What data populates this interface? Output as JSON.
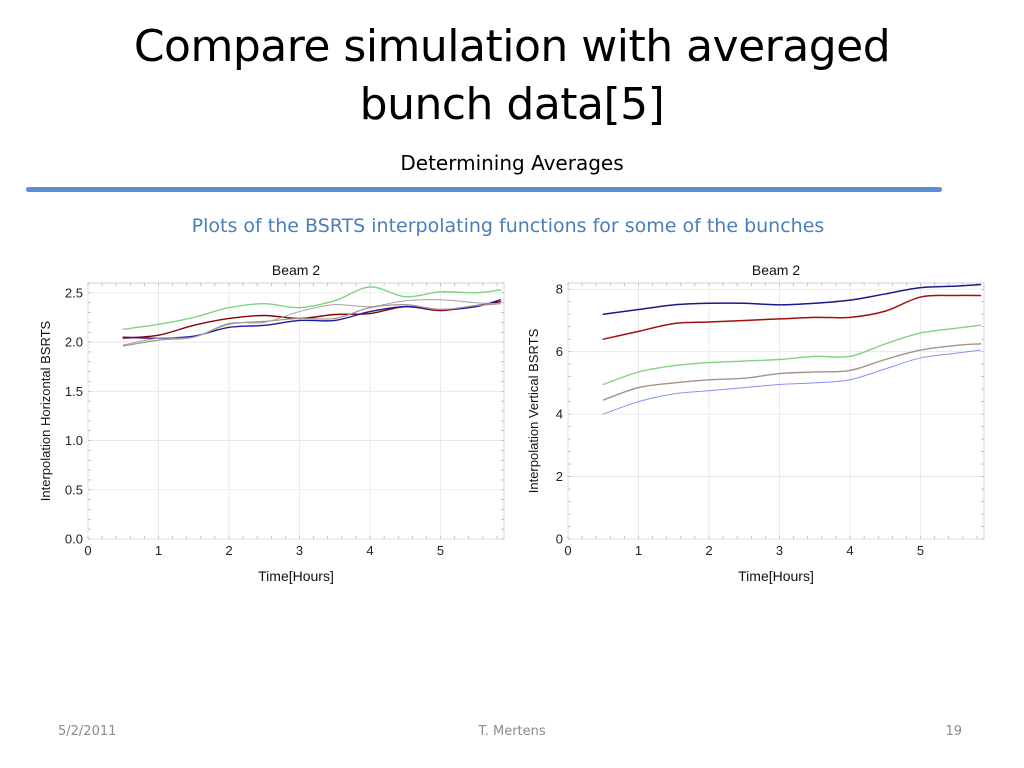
{
  "slide": {
    "title_line1": "Compare simulation with averaged",
    "title_line2": "bunch data[5]",
    "subtitle": "Determining Averages",
    "caption": "Plots of the BSRTS  interpolating functions for some of the bunches",
    "footer_date": "5/2/2011",
    "footer_author": "T. Mertens",
    "footer_page": "19",
    "accent_color": "#5b8fd6",
    "caption_color": "#4a7ebb"
  },
  "chart_data": [
    {
      "type": "line",
      "title": "Beam 2",
      "xlabel": "Time[Hours]",
      "ylabel": "Interpolation Horizontal BSRTS",
      "xlim": [
        0,
        5.9
      ],
      "ylim": [
        0,
        2.6
      ],
      "xticks": [
        0,
        1,
        2,
        3,
        4,
        5
      ],
      "xtick_labels": [
        "0",
        "1",
        "2",
        "3",
        "4",
        "5"
      ],
      "yticks": [
        0,
        0.5,
        1,
        1.5,
        2,
        2.5
      ],
      "ytick_labels": [
        "0.0",
        "0.5",
        "1.0",
        "1.5",
        "2.0",
        "2.5"
      ],
      "grid": true,
      "series": [
        {
          "color": "#7fd47f",
          "width": 1.4,
          "x": [
            0.5,
            1.0,
            1.5,
            2.0,
            2.5,
            3.0,
            3.5,
            4.0,
            4.5,
            5.0,
            5.5,
            5.85
          ],
          "y": [
            2.13,
            2.18,
            2.25,
            2.35,
            2.39,
            2.35,
            2.42,
            2.56,
            2.46,
            2.51,
            2.5,
            2.53
          ]
        },
        {
          "color": "#8b0000",
          "width": 1.4,
          "x": [
            0.5,
            1.0,
            1.5,
            2.0,
            2.5,
            3.0,
            3.5,
            4.0,
            4.5,
            5.0,
            5.5,
            5.85
          ],
          "y": [
            2.04,
            2.07,
            2.17,
            2.24,
            2.27,
            2.24,
            2.28,
            2.29,
            2.36,
            2.32,
            2.37,
            2.41
          ]
        },
        {
          "color": "#1a1aa8",
          "width": 1.4,
          "x": [
            0.5,
            1.0,
            1.5,
            2.0,
            2.5,
            3.0,
            3.5,
            4.0,
            4.5,
            5.0,
            5.5,
            5.85
          ],
          "y": [
            2.05,
            2.04,
            2.06,
            2.15,
            2.17,
            2.22,
            2.22,
            2.31,
            2.36,
            2.33,
            2.36,
            2.43
          ]
        },
        {
          "color": "#a89284",
          "width": 1.2,
          "x": [
            0.5,
            1.0,
            1.5,
            2.0,
            2.5,
            3.0,
            3.5,
            4.0,
            4.5,
            5.0,
            5.5,
            5.85
          ],
          "y": [
            1.96,
            2.02,
            2.05,
            2.18,
            2.21,
            2.24,
            2.24,
            2.35,
            2.38,
            2.33,
            2.37,
            2.39
          ]
        },
        {
          "color": "#a0a0a0",
          "width": 1.0,
          "x": [
            0.5,
            1.0,
            1.5,
            2.0,
            2.5,
            3.0,
            3.5,
            4.0,
            4.5,
            5.0,
            5.5,
            5.85
          ],
          "y": [
            1.97,
            2.04,
            2.05,
            2.19,
            2.2,
            2.31,
            2.38,
            2.36,
            2.42,
            2.43,
            2.4,
            2.39
          ]
        }
      ]
    },
    {
      "type": "line",
      "title": "Beam 2",
      "xlabel": "Time[Hours]",
      "ylabel": "Interpolation Vertical BSRTS",
      "xlim": [
        0,
        5.9
      ],
      "ylim": [
        0,
        8.2
      ],
      "xticks": [
        0,
        1,
        2,
        3,
        4,
        5
      ],
      "xtick_labels": [
        "0",
        "1",
        "2",
        "3",
        "4",
        "5"
      ],
      "yticks": [
        0,
        2,
        4,
        6,
        8
      ],
      "ytick_labels": [
        "0",
        "2",
        "4",
        "6",
        "8"
      ],
      "grid": true,
      "series": [
        {
          "color": "#1a1a8c",
          "width": 1.5,
          "x": [
            0.5,
            1.0,
            1.5,
            2.0,
            2.5,
            3.0,
            3.5,
            4.0,
            4.5,
            5.0,
            5.5,
            5.85
          ],
          "y": [
            7.2,
            7.35,
            7.5,
            7.55,
            7.55,
            7.5,
            7.55,
            7.65,
            7.85,
            8.05,
            8.1,
            8.15
          ]
        },
        {
          "color": "#a01010",
          "width": 1.5,
          "x": [
            0.5,
            1.0,
            1.5,
            2.0,
            2.5,
            3.0,
            3.5,
            4.0,
            4.5,
            5.0,
            5.5,
            5.85
          ],
          "y": [
            6.4,
            6.65,
            6.9,
            6.95,
            7.0,
            7.05,
            7.1,
            7.1,
            7.3,
            7.75,
            7.8,
            7.8
          ]
        },
        {
          "color": "#7fd47f",
          "width": 1.4,
          "x": [
            0.5,
            1.0,
            1.5,
            2.0,
            2.5,
            3.0,
            3.5,
            4.0,
            4.5,
            5.0,
            5.5,
            5.85
          ],
          "y": [
            4.95,
            5.35,
            5.55,
            5.65,
            5.7,
            5.75,
            5.85,
            5.85,
            6.25,
            6.6,
            6.75,
            6.85
          ]
        },
        {
          "color": "#a89284",
          "width": 1.4,
          "x": [
            0.5,
            1.0,
            1.5,
            2.0,
            2.5,
            3.0,
            3.5,
            4.0,
            4.5,
            5.0,
            5.5,
            5.85
          ],
          "y": [
            4.45,
            4.85,
            5.0,
            5.1,
            5.15,
            5.3,
            5.35,
            5.4,
            5.75,
            6.05,
            6.2,
            6.25
          ]
        },
        {
          "color": "#8f8ff5",
          "width": 1.0,
          "x": [
            0.5,
            1.0,
            1.5,
            2.0,
            2.5,
            3.0,
            3.5,
            4.0,
            4.5,
            5.0,
            5.5,
            5.85
          ],
          "y": [
            4.0,
            4.4,
            4.65,
            4.75,
            4.85,
            4.95,
            5.0,
            5.1,
            5.45,
            5.8,
            5.95,
            6.05
          ]
        }
      ]
    }
  ]
}
